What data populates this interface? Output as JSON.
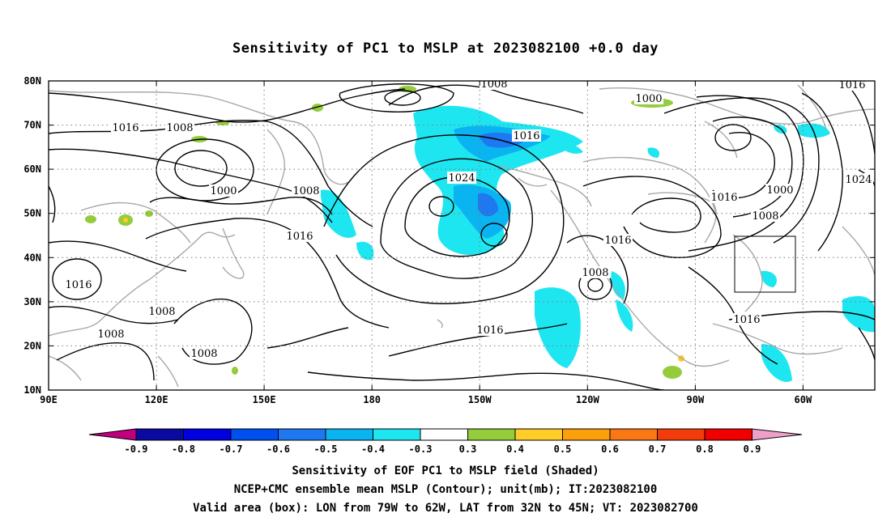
{
  "title": "Sensitivity of PC1 to MSLP at 2023082100 +0.0 day",
  "lat_ticks": [
    "80N",
    "70N",
    "60N",
    "50N",
    "40N",
    "30N",
    "20N",
    "10N"
  ],
  "lon_ticks": [
    "90E",
    "120E",
    "150E",
    "180",
    "150W",
    "120W",
    "90W",
    "60W"
  ],
  "colorbar": {
    "labels": [
      "-0.9",
      "-0.8",
      "-0.7",
      "-0.6",
      "-0.5",
      "-0.4",
      "-0.3",
      "0.3",
      "0.4",
      "0.5",
      "0.6",
      "0.7",
      "0.8",
      "0.9"
    ],
    "colors": [
      "#c0007f",
      "#0a0aa0",
      "#0000e0",
      "#0050f0",
      "#1e78f0",
      "#0ab4f0",
      "#1ee6f0",
      "#ffffff",
      "#94cc3c",
      "#ffcc28",
      "#fba00a",
      "#fa7814",
      "#f43c0a",
      "#f00000",
      "#f0a0c8"
    ]
  },
  "contour_labels": [
    {
      "text": "1008",
      "pos": "top-center"
    },
    {
      "text": "1016",
      "pos": "top-right"
    },
    {
      "text": "1000",
      "pos": "north-atlantic-low"
    },
    {
      "text": "1016",
      "pos": "west-1"
    },
    {
      "text": "1008",
      "pos": "west-2"
    },
    {
      "text": "1016",
      "pos": "north-pacific"
    },
    {
      "text": "1000",
      "pos": "okhotsk"
    },
    {
      "text": "1008",
      "pos": "kamchatka"
    },
    {
      "text": "1024",
      "pos": "pacific-high"
    },
    {
      "text": "1016",
      "pos": "aleutian"
    },
    {
      "text": "1000",
      "pos": "canada"
    },
    {
      "text": "1008",
      "pos": "newfoundland"
    },
    {
      "text": "1016",
      "pos": "hudson"
    },
    {
      "text": "1024",
      "pos": "atlantic"
    },
    {
      "text": "1016",
      "pos": "rockies"
    },
    {
      "text": "1008",
      "pos": "baja-low"
    },
    {
      "text": "1016",
      "pos": "asia-1"
    },
    {
      "text": "1008",
      "pos": "asia-2"
    },
    {
      "text": "1008",
      "pos": "asia-3"
    },
    {
      "text": "1008",
      "pos": "asia-4"
    },
    {
      "text": "1016",
      "pos": "subtropical-pacific"
    },
    {
      "text": "1016",
      "pos": "caribbean"
    }
  ],
  "valid_area_box": {
    "lon_from": "79W",
    "lon_to": "62W",
    "lat_from": "32N",
    "lat_to": "45N"
  },
  "captions": [
    "Sensitivity of EOF PC1 to MSLP field (Shaded)",
    "NCEP+CMC ensemble mean MSLP (Contour); unit(mb); IT:2023082100",
    "Valid area (box): LON from 79W to 62W, LAT from 32N to 45N; VT: 2023082700"
  ]
}
